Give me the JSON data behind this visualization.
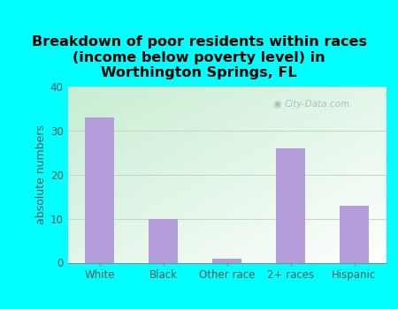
{
  "categories": [
    "White",
    "Black",
    "Other race",
    "2+ races",
    "Hispanic"
  ],
  "values": [
    33,
    10,
    1,
    26,
    13
  ],
  "bar_color": "#b39ddb",
  "title": "Breakdown of poor residents within races\n(income below poverty level) in\nWorthington Springs, FL",
  "ylabel": "absolute numbers",
  "ylim": [
    0,
    40
  ],
  "yticks": [
    0,
    10,
    20,
    30,
    40
  ],
  "bg_outer": "#00ffff",
  "plot_bg_topleft": "#c8ecd4",
  "plot_bg_bottomright": "#f5fff8",
  "watermark": "City-Data.com",
  "grid_color": "#c0d8c0",
  "title_fontsize": 11.5,
  "tick_fontsize": 8.5,
  "ylabel_fontsize": 9
}
